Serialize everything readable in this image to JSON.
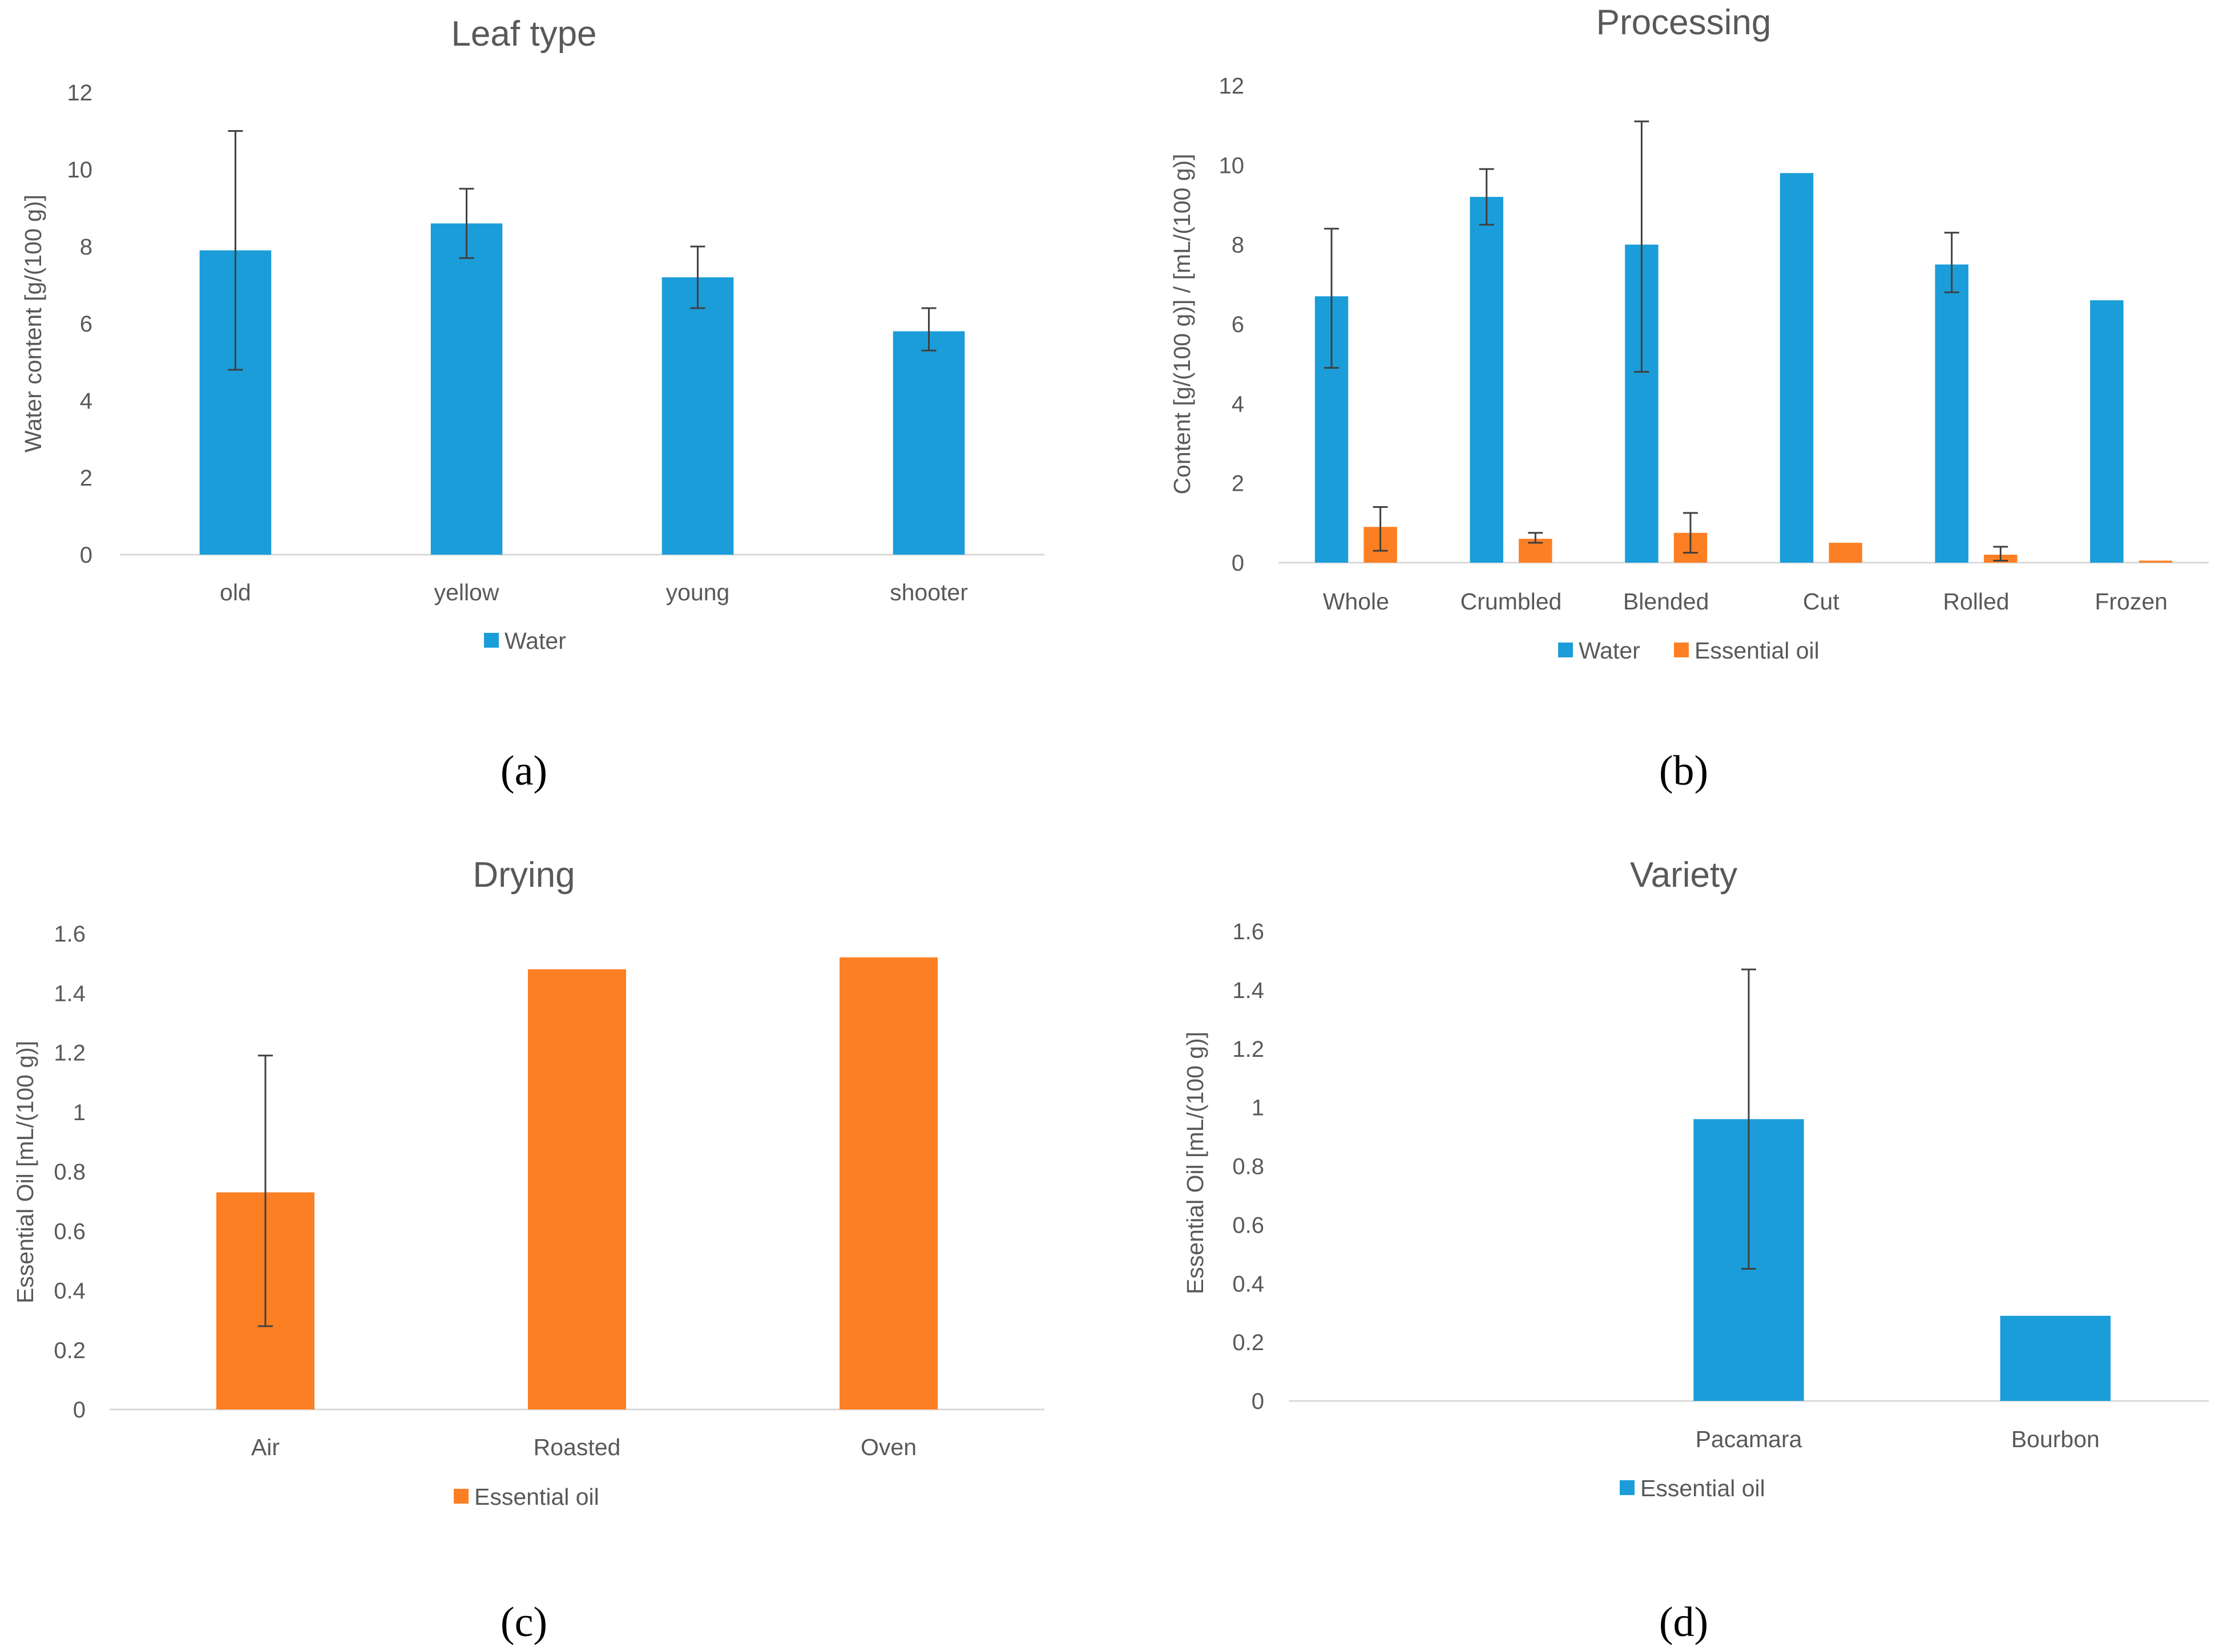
{
  "colors": {
    "water": "#1b9dd9",
    "essential_oil": "#fd7f23",
    "errorbar": "#404040",
    "axis": "#d9d9d9"
  },
  "chart_data": [
    {
      "id": "a",
      "panel_label": "(a)",
      "type": "bar",
      "title": "Leaf type",
      "ylabel": "Water content  [g/(100 g)]",
      "xlabel": "",
      "ylim": [
        0,
        12
      ],
      "yticks": [
        0,
        2,
        4,
        6,
        8,
        10,
        12
      ],
      "categories": [
        "old",
        "yellow",
        "young",
        "shooter"
      ],
      "series": [
        {
          "name": "Water",
          "color_key": "water",
          "values": [
            7.9,
            8.6,
            7.2,
            5.8
          ],
          "error_low": [
            4.8,
            7.7,
            6.4,
            5.3
          ],
          "error_high": [
            11.0,
            9.5,
            8.0,
            6.4
          ]
        }
      ],
      "legend": "bottom"
    },
    {
      "id": "b",
      "panel_label": "(b)",
      "type": "bar",
      "title": "Processing",
      "ylabel": "Content [g/(100 g)] / [mL/(100 g)]",
      "xlabel": "",
      "ylim": [
        0,
        12
      ],
      "yticks": [
        0,
        2,
        4,
        6,
        8,
        10,
        12
      ],
      "categories": [
        "Whole",
        "Crumbled",
        "Blended",
        "Cut",
        "Rolled",
        "Frozen"
      ],
      "series": [
        {
          "name": "Water",
          "color_key": "water",
          "values": [
            6.7,
            9.2,
            8.0,
            9.8,
            7.5,
            6.6
          ],
          "error_low": [
            4.9,
            8.5,
            4.8,
            9.8,
            6.8,
            6.6
          ],
          "error_high": [
            8.4,
            9.9,
            11.1,
            9.8,
            8.3,
            6.6
          ]
        },
        {
          "name": "Essential oil",
          "color_key": "essential_oil",
          "values": [
            0.9,
            0.6,
            0.75,
            0.5,
            0.2,
            0.05
          ],
          "error_low": [
            0.3,
            0.5,
            0.25,
            0.5,
            0.05,
            0.05
          ],
          "error_high": [
            1.4,
            0.75,
            1.25,
            0.5,
            0.4,
            0.05
          ]
        }
      ],
      "legend": "bottom"
    },
    {
      "id": "c",
      "panel_label": "(c)",
      "type": "bar",
      "title": "Drying",
      "ylabel": "Essential Oil [mL/(100 g)]",
      "xlabel": "",
      "ylim": [
        0,
        1.6
      ],
      "yticks": [
        0,
        0.2,
        0.4,
        0.6,
        0.8,
        1,
        1.2,
        1.4,
        1.6
      ],
      "categories": [
        "Air",
        "Roasted",
        "Oven"
      ],
      "series": [
        {
          "name": "Essential oil",
          "color_key": "essential_oil",
          "values": [
            0.73,
            1.48,
            1.52
          ],
          "error_low": [
            0.28,
            null,
            null
          ],
          "error_high": [
            1.19,
            null,
            null
          ]
        }
      ],
      "legend": "bottom"
    },
    {
      "id": "d",
      "panel_label": "(d)",
      "type": "bar",
      "title": "Variety",
      "ylabel": "Essential Oil [mL/(100 g)]",
      "xlabel": "",
      "ylim": [
        0,
        1.6
      ],
      "yticks": [
        0,
        0.2,
        0.4,
        0.6,
        0.8,
        1,
        1.2,
        1.4,
        1.6
      ],
      "categories": [
        "",
        "Pacamara",
        "Bourbon"
      ],
      "series": [
        {
          "name": "Essential oil",
          "color_key": "water",
          "values": [
            null,
            0.96,
            0.29
          ],
          "error_low": [
            null,
            0.45,
            null
          ],
          "error_high": [
            null,
            1.47,
            null
          ]
        }
      ],
      "legend": "bottom"
    }
  ]
}
